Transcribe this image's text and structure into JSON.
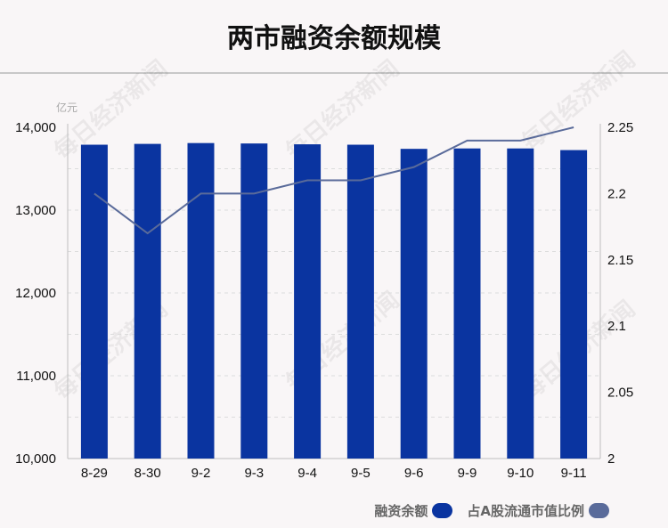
{
  "title": "两市融资余额规模",
  "watermark": "每日经济新闻",
  "chart_data": {
    "type": "bar",
    "categories": [
      "8-29",
      "8-30",
      "9-2",
      "9-3",
      "9-4",
      "9-5",
      "9-6",
      "9-9",
      "9-10",
      "9-11"
    ],
    "series": [
      {
        "name": "融资余额",
        "type": "bar",
        "axis": "left",
        "color": "#0a34a0",
        "values": [
          13790,
          13800,
          13810,
          13805,
          13795,
          13790,
          13740,
          13745,
          13745,
          13725
        ]
      },
      {
        "name": "占A股流通市值比例",
        "type": "line",
        "axis": "right",
        "color": "#5a6b9a",
        "values": [
          2.2,
          2.17,
          2.2,
          2.2,
          2.21,
          2.21,
          2.22,
          2.24,
          2.24,
          2.25
        ]
      }
    ],
    "y_left": {
      "unit": "亿元",
      "range": [
        10000,
        14000
      ],
      "ticks": [
        "10,000",
        "11,000",
        "12,000",
        "13,000",
        "14,000"
      ]
    },
    "y_right": {
      "range": [
        2,
        2.25
      ],
      "ticks": [
        "2",
        "2.05",
        "2.1",
        "2.15",
        "2.2",
        "2.25"
      ]
    },
    "grid": true,
    "legend_position": "bottom-right"
  }
}
